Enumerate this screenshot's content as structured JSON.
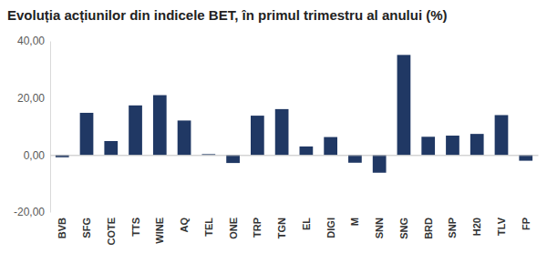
{
  "chart_data": {
    "type": "bar",
    "title": "Evoluția acțiunilor din indicele BET, în primul trimestru al anului (%)",
    "categories": [
      "BVB",
      "SFG",
      "COTE",
      "TTS",
      "WINE",
      "AQ",
      "TEL",
      "ONE",
      "TRP",
      "TGN",
      "EL",
      "DIGI",
      "M",
      "SNN",
      "SNG",
      "BRD",
      "SNP",
      "H20",
      "TLV",
      "FP"
    ],
    "values": [
      -0.8,
      14.8,
      4.9,
      17.4,
      21.0,
      12.1,
      0.3,
      -2.8,
      13.8,
      16.1,
      3.0,
      6.3,
      -2.7,
      -6.2,
      35.1,
      6.4,
      6.8,
      7.4,
      14.0,
      -2.0
    ],
    "color": "#203864",
    "ylim": [
      -20,
      40
    ],
    "yticks": [
      {
        "value": -20,
        "label": "-20,00"
      },
      {
        "value": 0,
        "label": "0,00"
      },
      {
        "value": 20,
        "label": "20,00"
      },
      {
        "value": 40,
        "label": "40,00"
      }
    ],
    "grid": false
  }
}
